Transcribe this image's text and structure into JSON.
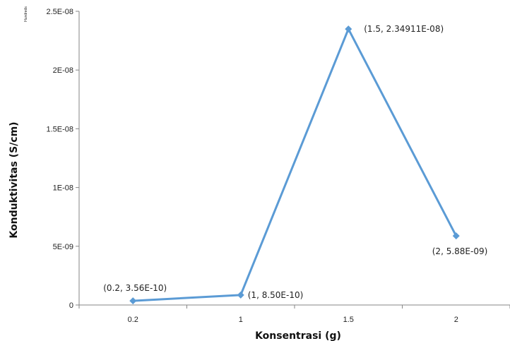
{
  "chart_data": {
    "type": "line",
    "xlabel": "Konsentrasi (g)",
    "ylabel": "Konduktivitas (S/cm)",
    "y_display_unit": "Hundreds",
    "ylim": [
      0,
      2.5e-08
    ],
    "y_ticks": [
      0,
      5e-09,
      1e-08,
      1.5e-08,
      2e-08,
      2.5e-08
    ],
    "y_tick_labels": [
      "0",
      "5E-09",
      "1E-08",
      "1.5E-08",
      "2E-08",
      "2.5E-08"
    ],
    "categories": [
      "0.2",
      "1",
      "1.5",
      "2"
    ],
    "series": [
      {
        "color": "#5b9bd5",
        "values": [
          3.56e-10,
          8.5e-10,
          2.34911e-08,
          5.88e-09
        ],
        "labels": [
          "(0.2, 3.56E-10)",
          "(1, 8.50E-10)",
          "(1.5, 2.34911E-08)",
          "(2, 5.88E-09)"
        ]
      }
    ],
    "grid": false,
    "legend": "none"
  }
}
